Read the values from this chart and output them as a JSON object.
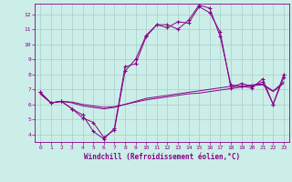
{
  "background_color": "#cceee8",
  "grid_color": "#aacccc",
  "line_color": "#880088",
  "xlabel": "Windchill (Refroidissement éolien,°C)",
  "xlim": [
    -0.5,
    23.5
  ],
  "ylim": [
    3.5,
    12.7
  ],
  "yticks": [
    4,
    5,
    6,
    7,
    8,
    9,
    10,
    11,
    12
  ],
  "xticks": [
    0,
    1,
    2,
    3,
    4,
    5,
    6,
    7,
    8,
    9,
    10,
    11,
    12,
    13,
    14,
    15,
    16,
    17,
    18,
    19,
    20,
    21,
    22,
    23
  ],
  "line1_x": [
    0,
    1,
    2,
    3,
    4,
    5,
    6,
    7,
    8,
    9,
    10,
    11,
    12,
    13,
    14,
    15,
    16,
    17,
    18,
    19,
    20,
    21,
    22,
    23
  ],
  "line1_y": [
    6.8,
    6.1,
    6.2,
    5.7,
    5.3,
    4.2,
    3.7,
    4.4,
    8.5,
    8.7,
    10.5,
    11.3,
    11.3,
    11.0,
    11.6,
    12.6,
    12.4,
    10.5,
    7.3,
    7.2,
    7.1,
    7.7,
    6.0,
    8.0
  ],
  "line2_x": [
    0,
    1,
    2,
    3,
    4,
    5,
    6,
    7,
    8,
    9,
    10,
    11,
    12,
    13,
    14,
    15,
    16,
    17,
    18,
    19,
    20,
    21,
    22,
    23
  ],
  "line2_y": [
    6.8,
    6.1,
    6.2,
    5.7,
    5.1,
    4.8,
    3.8,
    4.3,
    8.2,
    9.0,
    10.6,
    11.3,
    11.1,
    11.5,
    11.4,
    12.5,
    12.1,
    10.8,
    7.1,
    7.4,
    7.2,
    7.5,
    6.0,
    7.8
  ],
  "line3_x": [
    0,
    1,
    2,
    3,
    4,
    5,
    6,
    7,
    8,
    9,
    10,
    11,
    12,
    13,
    14,
    15,
    16,
    17,
    18,
    19,
    20,
    21,
    22,
    23
  ],
  "line3_y": [
    6.7,
    6.1,
    6.2,
    6.1,
    5.9,
    5.8,
    5.7,
    5.8,
    6.0,
    6.2,
    6.4,
    6.5,
    6.6,
    6.7,
    6.8,
    6.9,
    7.0,
    7.1,
    7.2,
    7.2,
    7.3,
    7.35,
    6.9,
    7.5
  ],
  "line4_x": [
    0,
    1,
    2,
    3,
    4,
    5,
    6,
    7,
    8,
    9,
    10,
    11,
    12,
    13,
    14,
    15,
    16,
    17,
    18,
    19,
    20,
    21,
    22,
    23
  ],
  "line4_y": [
    6.7,
    6.1,
    6.2,
    6.15,
    6.0,
    5.9,
    5.8,
    5.85,
    6.0,
    6.15,
    6.3,
    6.4,
    6.5,
    6.6,
    6.7,
    6.75,
    6.85,
    6.95,
    7.05,
    7.15,
    7.25,
    7.3,
    6.85,
    7.4
  ]
}
